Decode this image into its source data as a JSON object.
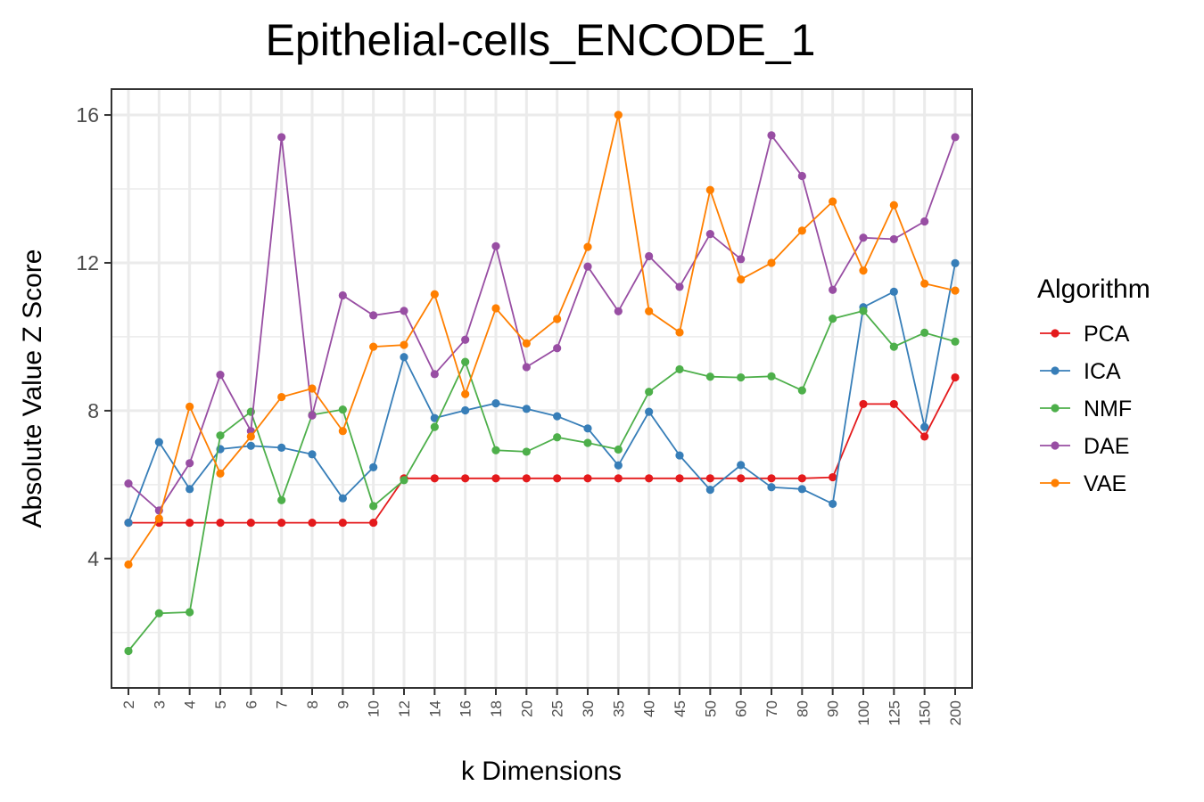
{
  "chart_data": {
    "type": "line",
    "title": "Epithelial-cells_ENCODE_1",
    "xlabel": "k Dimensions",
    "ylabel": "Absolute Value Z Score",
    "categories": [
      "2",
      "3",
      "4",
      "5",
      "6",
      "7",
      "8",
      "9",
      "10",
      "12",
      "14",
      "16",
      "18",
      "20",
      "25",
      "30",
      "35",
      "40",
      "45",
      "50",
      "60",
      "70",
      "80",
      "90",
      "100",
      "125",
      "150",
      "200"
    ],
    "yticks": [
      4,
      8,
      12,
      16
    ],
    "ylim": [
      0.5,
      16.7
    ],
    "grid": true,
    "legend": {
      "title": "Algorithm",
      "position": "right"
    },
    "series": [
      {
        "name": "PCA",
        "color": "#E41A1C",
        "values": [
          4.97,
          4.97,
          4.97,
          4.97,
          4.97,
          4.97,
          4.97,
          4.97,
          4.97,
          6.17,
          6.17,
          6.17,
          6.17,
          6.17,
          6.17,
          6.17,
          6.17,
          6.17,
          6.17,
          6.17,
          6.17,
          6.17,
          6.17,
          6.2,
          8.18,
          8.18,
          7.3,
          8.9
        ]
      },
      {
        "name": "ICA",
        "color": "#377EB8",
        "values": [
          4.97,
          7.15,
          5.88,
          6.96,
          7.05,
          7.0,
          6.82,
          5.63,
          6.47,
          9.45,
          7.8,
          8.01,
          8.2,
          8.05,
          7.85,
          7.52,
          6.52,
          7.97,
          6.79,
          5.86,
          6.53,
          5.93,
          5.88,
          5.48,
          10.8,
          11.22,
          7.56,
          11.99
        ]
      },
      {
        "name": "NMF",
        "color": "#4DAF4A",
        "values": [
          1.5,
          2.52,
          2.55,
          7.33,
          7.97,
          5.58,
          7.89,
          8.03,
          5.42,
          6.12,
          7.56,
          9.32,
          6.93,
          6.89,
          7.28,
          7.13,
          6.95,
          8.51,
          9.12,
          8.92,
          8.9,
          8.93,
          8.55,
          10.49,
          10.7,
          9.73,
          10.11,
          9.87
        ]
      },
      {
        "name": "DAE",
        "color": "#984EA3",
        "values": [
          6.03,
          5.3,
          6.58,
          8.97,
          7.45,
          15.4,
          7.87,
          11.12,
          10.58,
          10.7,
          8.99,
          9.92,
          12.45,
          9.18,
          9.69,
          11.9,
          10.69,
          12.18,
          11.35,
          12.78,
          12.1,
          15.45,
          14.35,
          11.27,
          12.68,
          12.64,
          13.12,
          15.4
        ]
      },
      {
        "name": "VAE",
        "color": "#FF7F00",
        "values": [
          3.84,
          5.08,
          8.11,
          6.3,
          7.3,
          8.37,
          8.6,
          7.45,
          9.73,
          9.78,
          11.15,
          8.45,
          10.77,
          9.82,
          10.48,
          12.43,
          16.0,
          10.69,
          10.12,
          13.97,
          11.55,
          12.0,
          12.87,
          13.66,
          11.79,
          13.56,
          11.44,
          11.25
        ]
      }
    ]
  }
}
